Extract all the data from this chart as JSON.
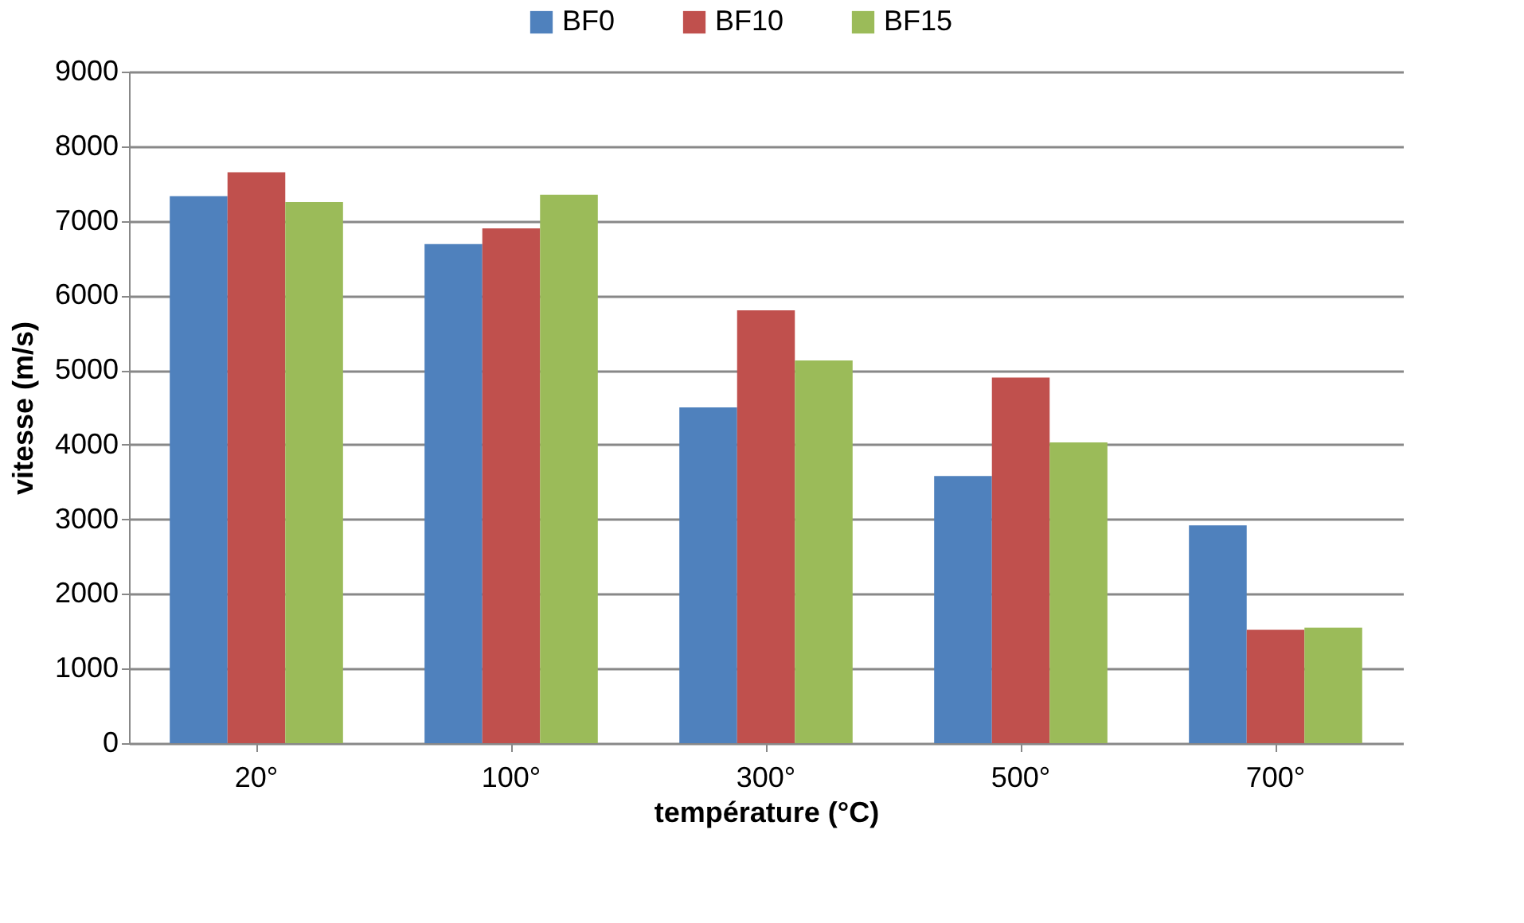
{
  "chart_data": {
    "type": "bar",
    "xlabel": "température (°C)",
    "ylabel": "vitesse (m/s)",
    "categories": [
      "20°",
      "100°",
      "300°",
      "500°",
      "700°"
    ],
    "series": [
      {
        "name": "BF0",
        "color": "#4f81bd",
        "values": [
          7330,
          6690,
          4500,
          3580,
          2920
        ]
      },
      {
        "name": "BF10",
        "color": "#c0504d",
        "values": [
          7650,
          6900,
          5800,
          4900,
          1520
        ]
      },
      {
        "name": "BF15",
        "color": "#9bbb59",
        "values": [
          7250,
          7350,
          5130,
          4030,
          1550
        ]
      }
    ],
    "ylim": [
      0,
      9000
    ],
    "yticks": [
      0,
      1000,
      2000,
      3000,
      4000,
      5000,
      6000,
      7000,
      8000,
      9000
    ],
    "grid": "y",
    "legend": "top"
  }
}
